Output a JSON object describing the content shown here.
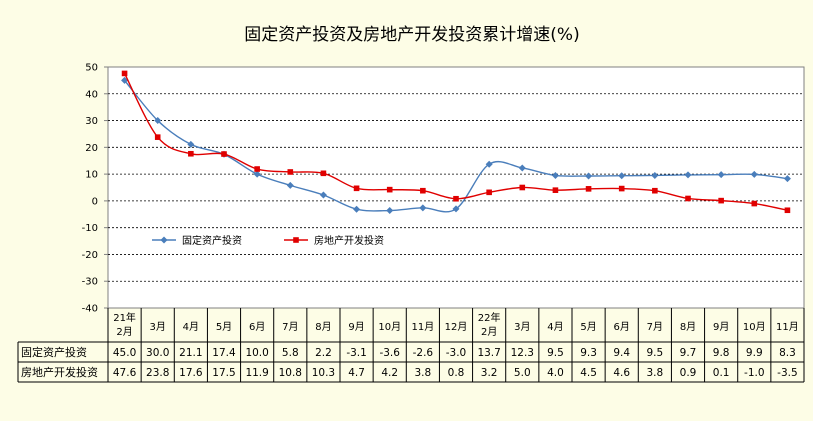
{
  "chart_data": {
    "type": "line",
    "title": "固定资产投资及房地产开发投资累计增速(%)",
    "categories": [
      [
        "21年",
        "2月"
      ],
      [
        "3月"
      ],
      [
        "4月"
      ],
      [
        "5月"
      ],
      [
        "6月"
      ],
      [
        "7月"
      ],
      [
        "8月"
      ],
      [
        "9月"
      ],
      [
        "10月"
      ],
      [
        "11月"
      ],
      [
        "12月"
      ],
      [
        "22年",
        "2月"
      ],
      [
        "3月"
      ],
      [
        "4月"
      ],
      [
        "5月"
      ],
      [
        "6月"
      ],
      [
        "7月"
      ],
      [
        "8月"
      ],
      [
        "9月"
      ],
      [
        "10月"
      ],
      [
        "11月"
      ]
    ],
    "ylim": [
      -40,
      50
    ],
    "yticks": [
      50,
      40,
      30,
      20,
      10,
      0,
      -10,
      -20,
      -30,
      -40
    ],
    "grid": true,
    "legend_position": "lower-left inside plot",
    "series": [
      {
        "name": "固定资产投资",
        "color": "#4a7ebb",
        "marker": "diamond",
        "values": [
          45.0,
          30.0,
          21.1,
          17.4,
          10.0,
          5.8,
          2.2,
          -3.1,
          -3.6,
          -2.6,
          -3.0,
          13.7,
          12.3,
          9.5,
          9.3,
          9.4,
          9.5,
          9.7,
          9.8,
          9.9,
          8.3
        ],
        "labels": [
          "45.0",
          "30.0",
          "21.1",
          "17.4",
          "10.0",
          "5.8",
          "2.2",
          "-3.1",
          "-3.6",
          "-2.6",
          "-3.0",
          "13.7",
          "12.3",
          "9.5",
          "9.3",
          "9.4",
          "9.5",
          "9.7",
          "9.8",
          "9.9",
          "8.3"
        ]
      },
      {
        "name": "房地产开发投资",
        "color": "#e00000",
        "marker": "square",
        "values": [
          47.6,
          23.8,
          17.6,
          17.5,
          11.9,
          10.8,
          10.3,
          4.7,
          4.2,
          3.8,
          0.8,
          3.2,
          5.0,
          4.0,
          4.5,
          4.6,
          3.8,
          0.9,
          0.1,
          -1.0,
          -3.5
        ],
        "labels": [
          "47.6",
          "23.8",
          "17.6",
          "17.5",
          "11.9",
          "10.8",
          "10.3",
          "4.7",
          "4.2",
          "3.8",
          "0.8",
          "3.2",
          "5.0",
          "4.0",
          "4.5",
          "4.6",
          "3.8",
          "0.9",
          "0.1",
          "-1.0",
          "-3.5"
        ]
      }
    ]
  }
}
